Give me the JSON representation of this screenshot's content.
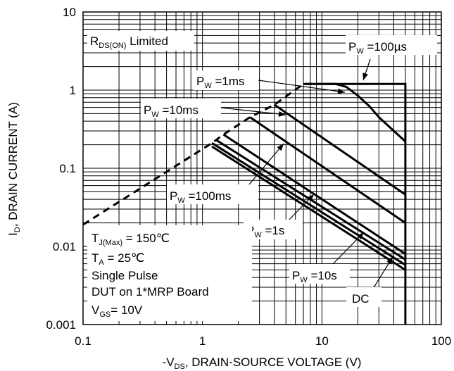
{
  "chart_data": {
    "type": "line",
    "x_scale": "log",
    "y_scale": "log",
    "xlim": [
      0.1,
      100
    ],
    "ylim": [
      0.001,
      10
    ],
    "grid": true,
    "x_ticks": [
      "0.1",
      "1",
      "10",
      "100"
    ],
    "y_ticks": [
      "10",
      "1",
      "0.1",
      "0.01",
      "0.001"
    ],
    "xlabel": {
      "prefix": "-V",
      "sub": "DS",
      "suffix": ", DRAIN-SOURCE VOLTAGE (V)"
    },
    "ylabel": {
      "prefix": "I",
      "sub": "D",
      "suffix": ", DRAIN CURRENT (A)"
    },
    "rds_limit": {
      "label_main": "R",
      "label_sub": "DS(ON)",
      "label_suffix": " Limited",
      "points": [
        [
          0.1,
          0.019
        ],
        [
          1.2,
          0.21
        ],
        [
          1.5,
          0.27
        ],
        [
          2.5,
          0.45
        ],
        [
          4,
          0.65
        ],
        [
          7,
          1.2
        ],
        [
          9,
          1.2
        ]
      ]
    },
    "series": [
      {
        "name": "Pw=100µs",
        "label_main": "P",
        "label_sub": "W",
        "label_suffix": " =100µs",
        "points": [
          [
            9,
            1.2
          ],
          [
            13,
            1.2
          ],
          [
            16,
            1.1
          ],
          [
            20,
            0.85
          ],
          [
            25,
            0.62
          ],
          [
            30,
            0.45
          ],
          [
            40,
            0.3
          ],
          [
            50,
            0.22
          ]
        ]
      },
      {
        "name": "Pw=1ms",
        "label_main": "P",
        "label_sub": "W",
        "label_suffix": " =1ms",
        "points": [
          [
            4,
            0.65
          ],
          [
            50,
            0.046
          ]
        ]
      },
      {
        "name": "Pw=10ms",
        "label_main": "P",
        "label_sub": "W",
        "label_suffix": " =10ms",
        "points": [
          [
            2.5,
            0.45
          ],
          [
            50,
            0.02
          ]
        ]
      },
      {
        "name": "Pw=100ms",
        "label_main": "P",
        "label_sub": "W",
        "label_suffix": " =100ms",
        "points": [
          [
            1.5,
            0.27
          ],
          [
            50,
            0.008
          ]
        ]
      },
      {
        "name": "Pw=1s",
        "label_main": "P",
        "label_sub": "W",
        "label_suffix": " =1s",
        "points": [
          [
            1.3,
            0.23
          ],
          [
            50,
            0.0068
          ]
        ]
      },
      {
        "name": "Pw=10s",
        "label_main": "P",
        "label_sub": "W",
        "label_suffix": " =10s",
        "points": [
          [
            1.2,
            0.21
          ],
          [
            50,
            0.0058
          ]
        ]
      },
      {
        "name": "DC",
        "label_main": "DC",
        "label_sub": "",
        "label_suffix": "",
        "points": [
          [
            1.2,
            0.19
          ],
          [
            50,
            0.005
          ]
        ]
      }
    ],
    "bound": {
      "points": [
        [
          7,
          1.2
        ],
        [
          50,
          1.2
        ],
        [
          50,
          0.001
        ]
      ]
    },
    "conditions": [
      {
        "main": "T",
        "sub": "J(Max)",
        "suffix": " = 150℃"
      },
      {
        "main": "T",
        "sub": "A",
        "suffix": " = 25℃"
      },
      {
        "main": "Single Pulse",
        "sub": "",
        "suffix": ""
      },
      {
        "main": "DUT on 1*MRP Board",
        "sub": "",
        "suffix": ""
      },
      {
        "main": "V",
        "sub": "GS",
        "suffix": "= 10V"
      }
    ]
  }
}
